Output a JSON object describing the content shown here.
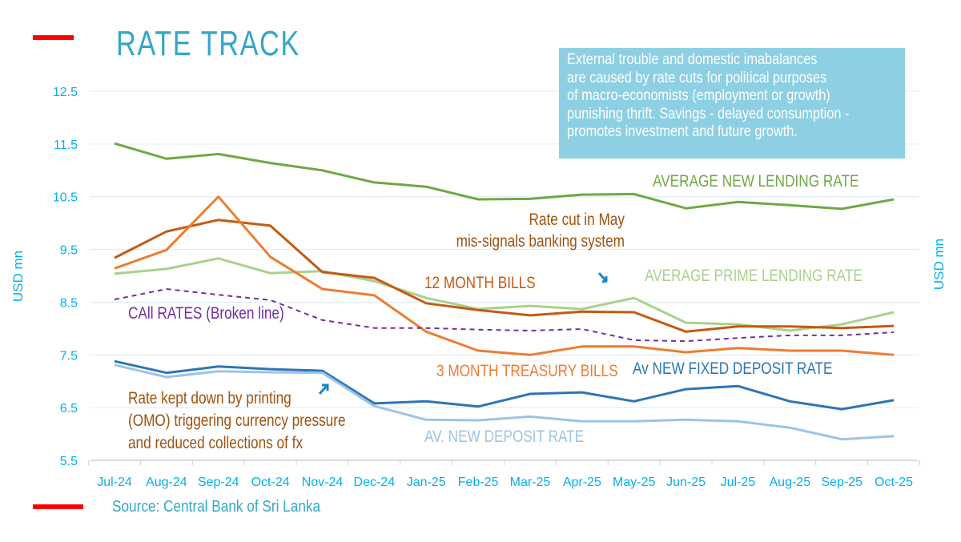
{
  "title": "RATE TRACK",
  "note": [
    "External trouble and domestic imabalances",
    "are caused by rate cuts for political purposes",
    "of macro-economists (employment or growth)",
    "punishing thrift. Savings - delayed consumption -",
    "promotes investment and future growth."
  ],
  "source": "Source: Central Bank of Sri Lanka",
  "colors": {
    "title": "#36a6c6",
    "accent_bar": "#ff0000",
    "note_bg": "#8dcfe3",
    "axis_text": "#00b0f0"
  },
  "chart_data": {
    "type": "line",
    "ylabel_left": "USD mn",
    "ylabel_right": "USD mn",
    "ylim": [
      5.5,
      12.5
    ],
    "yticks": [
      "12.5",
      "11.5",
      "10.5",
      "9.5",
      "8.5",
      "7.5",
      "6.5",
      "5.5"
    ],
    "grid": true,
    "categories": [
      "Jul-24",
      "Aug-24",
      "Sep-24",
      "Oct-24",
      "Nov-24",
      "Dec-24",
      "Jan-25",
      "Feb-25",
      "Mar-25",
      "Apr-25",
      "May-25",
      "Jun-25",
      "Jul-25",
      "Aug-25",
      "Sep-25",
      "Oct-25"
    ],
    "series": [
      {
        "name": "AVERAGE NEW LENDING RATE",
        "color": "#70a844",
        "dashed": false,
        "values": [
          11.51,
          11.22,
          11.31,
          11.14,
          11.0,
          10.77,
          10.69,
          10.45,
          10.46,
          10.54,
          10.55,
          10.28,
          10.4,
          10.34,
          10.27,
          10.45
        ]
      },
      {
        "name": "AVERAGE PRIME LENDING RATE",
        "color": "#a9d18e",
        "dashed": false,
        "values": [
          9.04,
          9.13,
          9.33,
          9.05,
          9.09,
          8.9,
          8.58,
          8.37,
          8.43,
          8.37,
          8.58,
          8.11,
          8.08,
          7.96,
          8.08,
          8.31
        ]
      },
      {
        "name": "12 MONTH BILLS",
        "color": "#c55a11",
        "dashed": false,
        "values": [
          9.34,
          9.84,
          10.06,
          9.95,
          9.07,
          8.96,
          8.48,
          8.35,
          8.25,
          8.32,
          8.31,
          7.94,
          8.04,
          8.04,
          8.01,
          8.05
        ]
      },
      {
        "name": "3 MONTH TREASURY BILLS",
        "color": "#ed7d31",
        "dashed": false,
        "values": [
          9.14,
          9.49,
          10.5,
          9.36,
          8.75,
          8.63,
          7.94,
          7.58,
          7.5,
          7.66,
          7.66,
          7.55,
          7.63,
          7.58,
          7.58,
          7.5
        ]
      },
      {
        "name": "CAll RATES (Broken line)",
        "color": "#7030a0",
        "dashed": true,
        "values": [
          8.55,
          8.75,
          8.64,
          8.54,
          8.16,
          8.01,
          8.01,
          7.98,
          7.96,
          7.99,
          7.78,
          7.76,
          7.82,
          7.87,
          7.87,
          7.93
        ]
      },
      {
        "name": "Av NEW FIXED DEPOSIT RATE",
        "color": "#2e75b6",
        "dashed": false,
        "values": [
          7.38,
          7.16,
          7.28,
          7.23,
          7.2,
          6.58,
          6.62,
          6.52,
          6.76,
          6.79,
          6.62,
          6.85,
          6.91,
          6.62,
          6.47,
          6.64
        ]
      },
      {
        "name": "AV. NEW DEPOSIT RATE",
        "color": "#9dc3e6",
        "dashed": false,
        "values": [
          7.31,
          7.08,
          7.19,
          7.17,
          7.16,
          6.53,
          6.27,
          6.26,
          6.33,
          6.24,
          6.24,
          6.27,
          6.24,
          6.12,
          5.9,
          5.96
        ]
      }
    ],
    "annotations": [
      {
        "lines": [
          "Rate cut in May",
          "mis-signals banking system"
        ],
        "color": "#a0520f"
      },
      {
        "lines": [
          "Rate kept down by printing",
          "(OMO) triggering currency pressure",
          "and reduced collections of fx"
        ],
        "color": "#a0520f"
      }
    ]
  }
}
